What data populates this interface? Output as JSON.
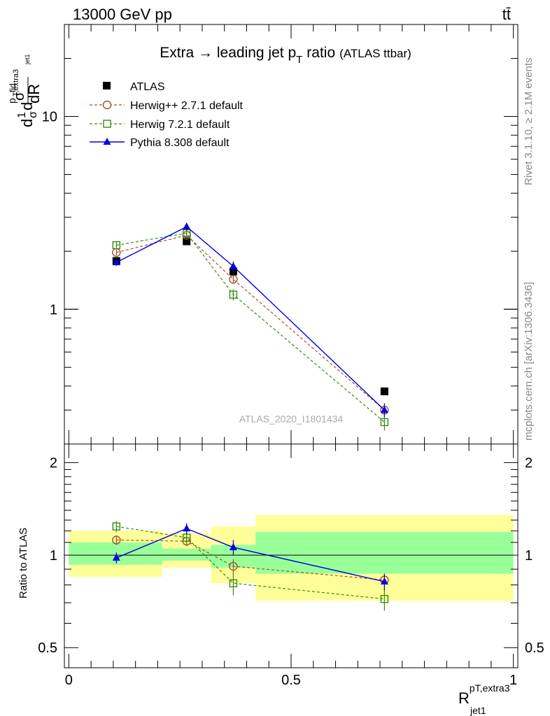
{
  "header": {
    "energy_label": "13000 GeV pp",
    "process_label": "tt̄"
  },
  "side_labels": {
    "rivet": "Rivet 3.1.10, ≥ 2.1M events",
    "mcplots": "mcplots.cern.ch [arXiv:1306.3436]"
  },
  "watermark": "ATLAS_2020_I1801434",
  "colors": {
    "atlas": "#000000",
    "herwigpp": "#a0522d",
    "herwig7": "#3a8a12",
    "pythia": "#0000e0",
    "band_inner": "#99ff99",
    "band_outer": "#ffff99"
  },
  "chart_data": [
    {
      "type": "scatter",
      "title_main": "Extra → leading jet p",
      "title_sub": "T",
      "title_tail": "ratio",
      "title_note": "(ATLAS ttbar)",
      "ylabel_parts": [
        "d",
        "1",
        "σ",
        "d",
        "σ",
        "fid",
        "p",
        "T,extra3",
        "jet1",
        "dR"
      ],
      "yscale": "log",
      "ylim": [
        0.2,
        30
      ],
      "xlim": [
        -0.01,
        1.01
      ],
      "yticks": [
        1,
        10
      ],
      "yticklabels": [
        "1",
        "10"
      ],
      "legend_position": "top-left",
      "series": [
        {
          "name": "ATLAS",
          "marker": "filled-square",
          "x": [
            0.107,
            0.265,
            0.37,
            0.71
          ],
          "y": [
            1.78,
            2.25,
            1.57,
            0.375
          ]
        },
        {
          "name": "Herwig++ 2.7.1 default",
          "marker": "open-circle",
          "x": [
            0.107,
            0.265,
            0.37,
            0.71
          ],
          "y": [
            1.97,
            2.42,
            1.43,
            0.3
          ],
          "err": [
            0.07,
            0.08,
            0.07,
            0.02
          ]
        },
        {
          "name": "Herwig 7.2.1 default",
          "marker": "open-square",
          "x": [
            0.107,
            0.265,
            0.37,
            0.71
          ],
          "y": [
            2.15,
            2.48,
            1.19,
            0.26
          ],
          "err": [
            0.08,
            0.1,
            0.08,
            0.025
          ]
        },
        {
          "name": "Pythia 8.308 default",
          "marker": "filled-triangle",
          "x": [
            0.107,
            0.265,
            0.37,
            0.71
          ],
          "y": [
            1.75,
            2.68,
            1.67,
            0.3
          ],
          "err": [
            0.07,
            0.12,
            0.1,
            0.025
          ]
        }
      ]
    },
    {
      "type": "scatter",
      "ylabel": "Ratio to ATLAS",
      "xlabel_main": "R",
      "xlabel_sup": "pT,extra3",
      "xlabel_sub": "jet1",
      "yscale": "log",
      "ylim": [
        0.43,
        2.3
      ],
      "xlim": [
        -0.01,
        1.01
      ],
      "yticks": [
        0.5,
        1,
        2
      ],
      "yticklabels": [
        "0.5",
        "1",
        "2"
      ],
      "xticks": [
        0,
        0.5,
        1
      ],
      "xticklabels": [
        "0",
        "0.5",
        "1"
      ],
      "bands": [
        {
          "x": [
            0,
            0.21
          ],
          "inner": [
            0.93,
            1.1
          ],
          "outer": [
            0.85,
            1.2
          ]
        },
        {
          "x": [
            0.21,
            0.32
          ],
          "inner": [
            0.96,
            1.05
          ],
          "outer": [
            0.91,
            1.18
          ]
        },
        {
          "x": [
            0.32,
            0.42
          ],
          "inner": [
            0.91,
            1.08
          ],
          "outer": [
            0.81,
            1.24
          ]
        },
        {
          "x": [
            0.42,
            1.0
          ],
          "inner": [
            0.87,
            1.19
          ],
          "outer": [
            0.71,
            1.35
          ]
        }
      ],
      "series": [
        {
          "name": "Herwig++ 2.7.1 default",
          "marker": "open-circle",
          "x": [
            0.107,
            0.265,
            0.37,
            0.71
          ],
          "y": [
            1.12,
            1.11,
            0.92,
            0.83
          ],
          "err": [
            0.04,
            0.04,
            0.05,
            0.04
          ]
        },
        {
          "name": "Herwig 7.2.1 default",
          "marker": "open-square",
          "x": [
            0.107,
            0.265,
            0.37,
            0.71
          ],
          "y": [
            1.24,
            1.14,
            0.81,
            0.72
          ],
          "err": [
            0.05,
            0.04,
            0.07,
            0.06
          ]
        },
        {
          "name": "Pythia 8.308 default",
          "marker": "filled-triangle",
          "x": [
            0.107,
            0.265,
            0.37,
            0.71
          ],
          "y": [
            0.98,
            1.22,
            1.06,
            0.82
          ],
          "err": [
            0.04,
            0.05,
            0.06,
            0.05
          ]
        }
      ]
    }
  ]
}
